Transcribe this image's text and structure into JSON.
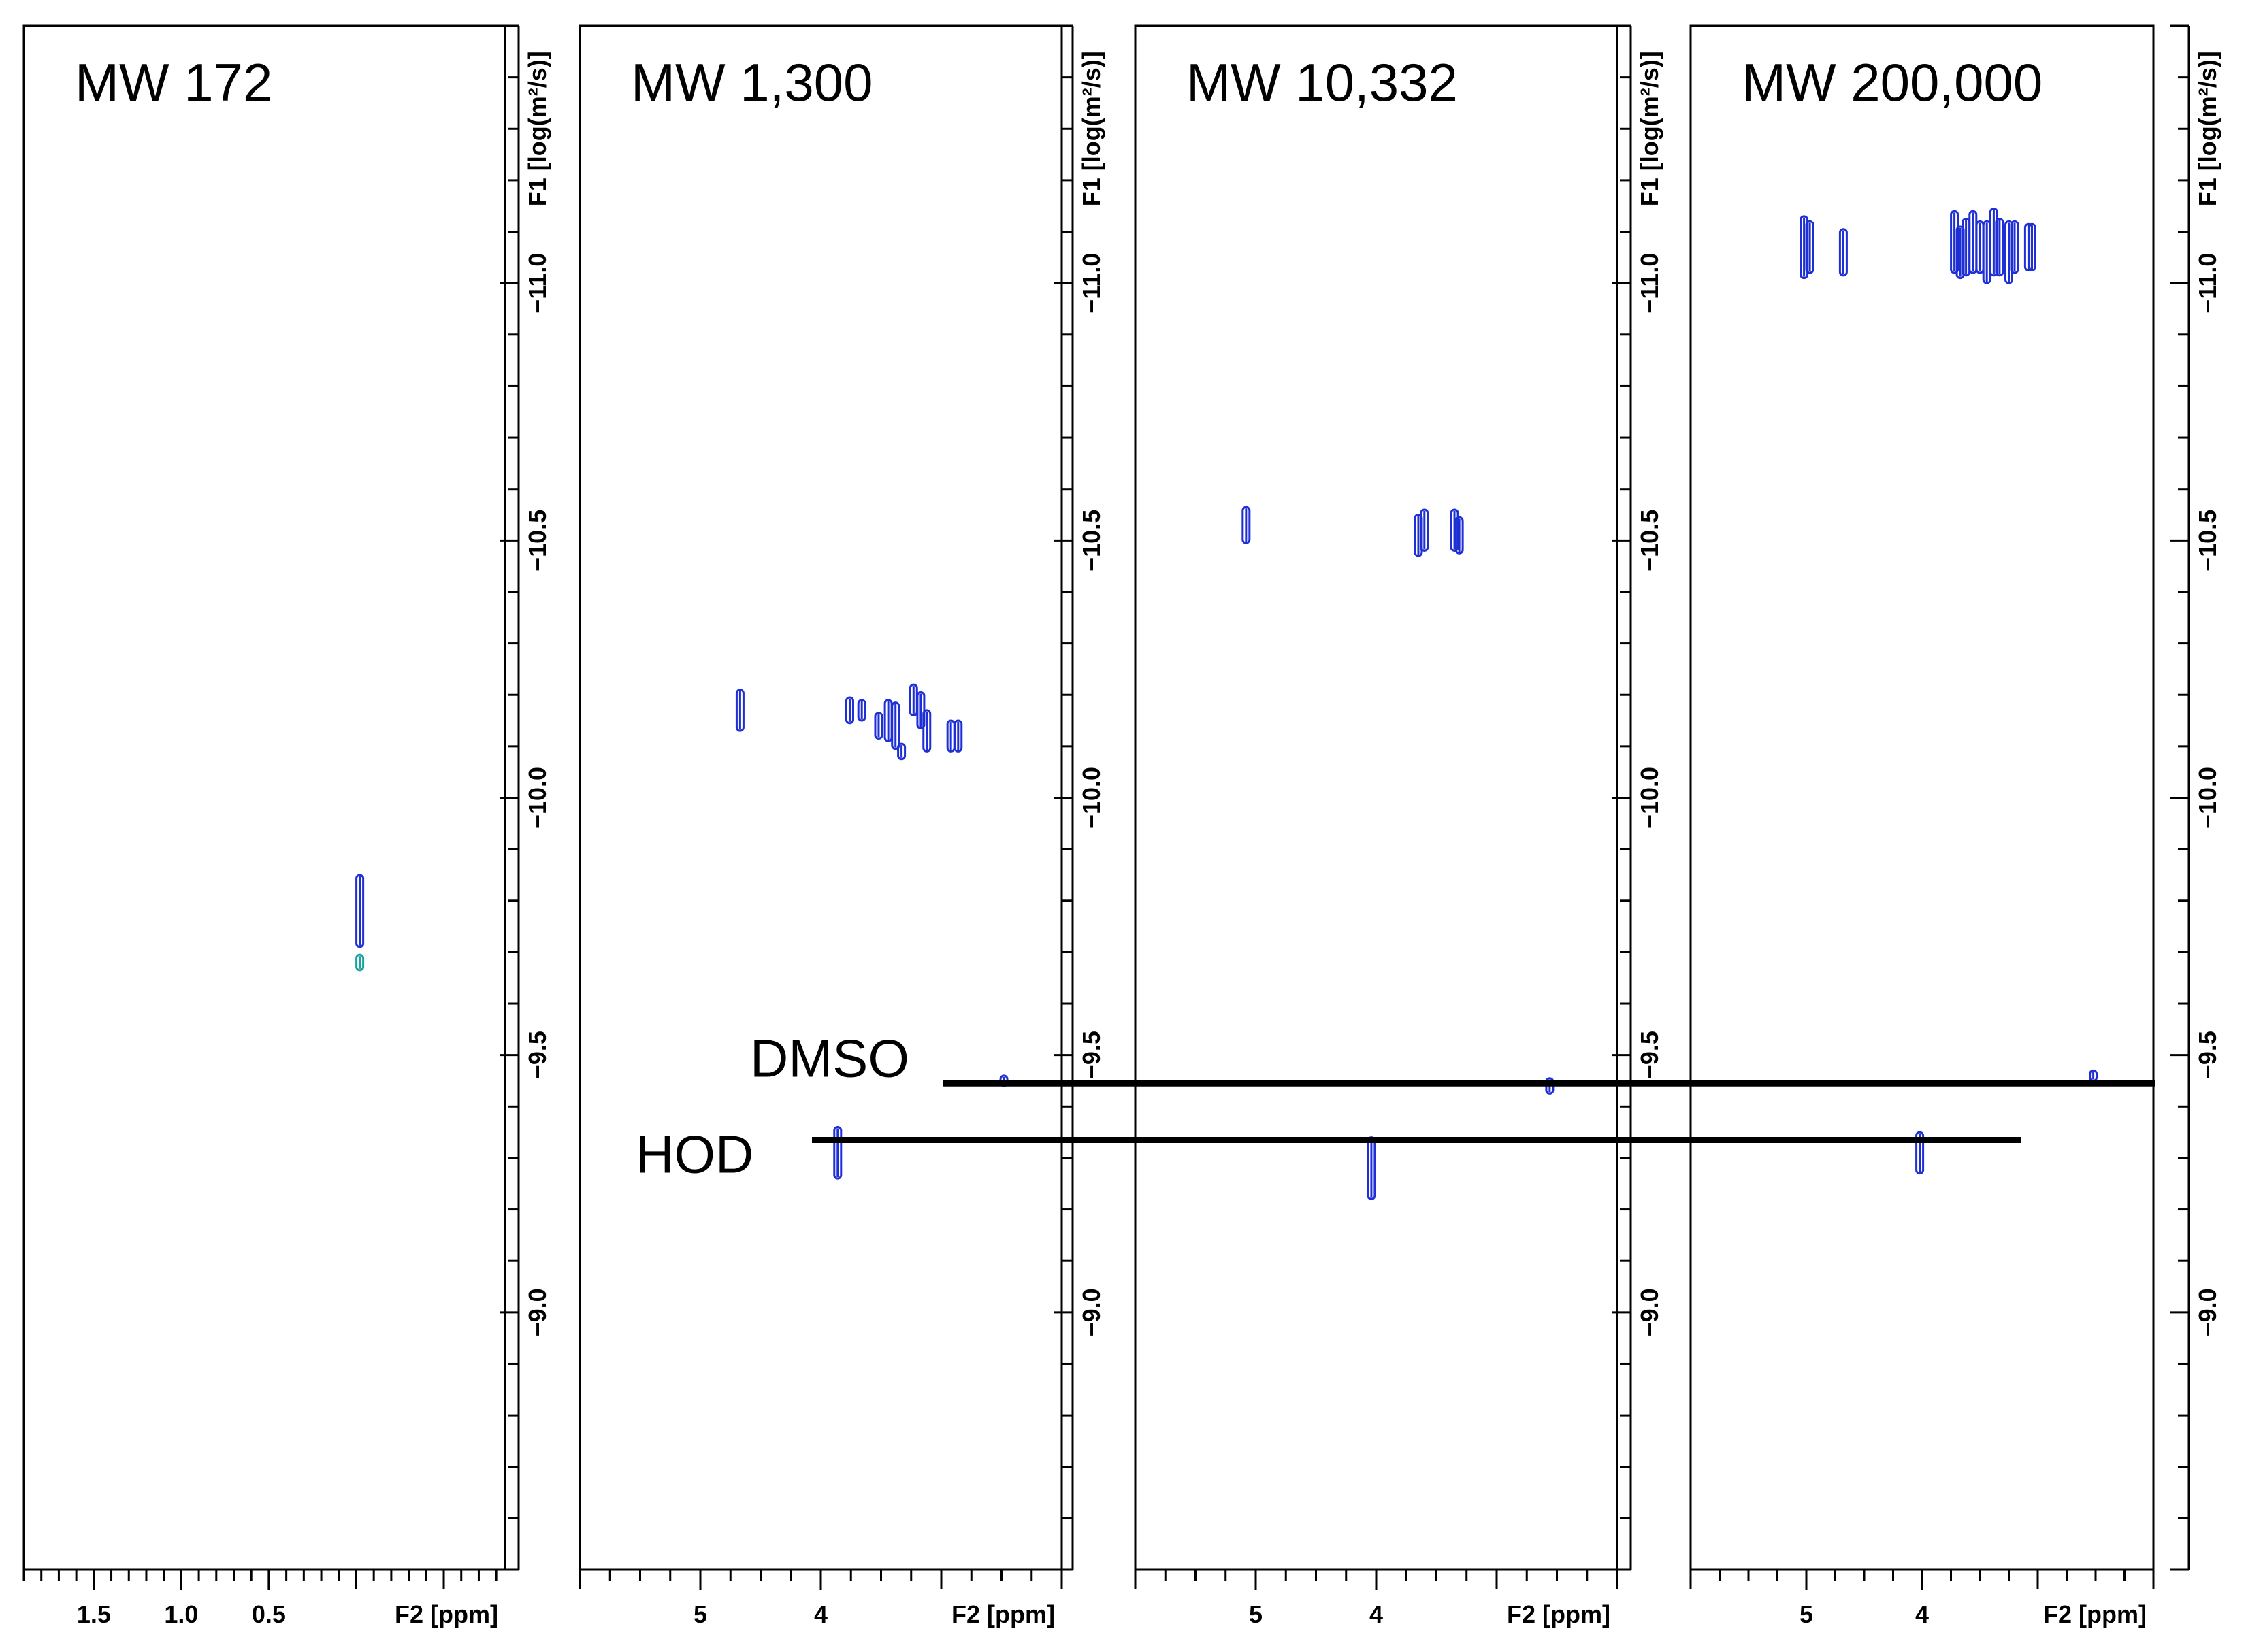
{
  "chart_data": {
    "type": "scatter",
    "subtype": "2D DOSY NMR contour plot",
    "y_axis_label": "F1 [log(m²/s)]",
    "y_ticks": [
      "-11.0",
      "-10.5",
      "-10.0",
      "-9.5",
      "-9.0"
    ],
    "y_range": [
      -11.5,
      -8.5
    ],
    "x_axis_label": "F2 [ppm]",
    "panels": [
      {
        "title": "MW 172",
        "xlim": [
          1.9,
          -0.85
        ],
        "x_ticks": [
          "1.5",
          "1.0",
          "0.5"
        ],
        "peaks": [
          {
            "ppm": -0.02,
            "logD": -9.78,
            "span": 0.14,
            "color": "#1f2fd6"
          },
          {
            "ppm": -0.02,
            "logD": -9.68,
            "span": 0.03,
            "color": "#1aa39a"
          }
        ]
      },
      {
        "title": "MW 1,300",
        "xlim": [
          6.0,
          2.0
        ],
        "x_ticks": [
          "5",
          "4"
        ],
        "peaks": [
          {
            "ppm": 4.67,
            "logD": -10.17,
            "span": 0.08,
            "color": "#1f2fd6"
          },
          {
            "ppm": 3.76,
            "logD": -10.17,
            "span": 0.05,
            "color": "#1f2fd6"
          },
          {
            "ppm": 3.66,
            "logD": -10.17,
            "span": 0.04,
            "color": "#1f2fd6"
          },
          {
            "ppm": 3.52,
            "logD": -10.14,
            "span": 0.05,
            "color": "#1f2fd6"
          },
          {
            "ppm": 3.44,
            "logD": -10.15,
            "span": 0.08,
            "color": "#1f2fd6"
          },
          {
            "ppm": 3.38,
            "logD": -10.14,
            "span": 0.09,
            "color": "#1f2fd6"
          },
          {
            "ppm": 3.23,
            "logD": -10.19,
            "span": 0.06,
            "color": "#1f2fd6"
          },
          {
            "ppm": 3.17,
            "logD": -10.17,
            "span": 0.07,
            "color": "#1f2fd6"
          },
          {
            "ppm": 3.12,
            "logD": -10.13,
            "span": 0.08,
            "color": "#1f2fd6"
          },
          {
            "ppm": 2.92,
            "logD": -10.12,
            "span": 0.06,
            "color": "#1f2fd6"
          },
          {
            "ppm": 2.86,
            "logD": -10.12,
            "span": 0.06,
            "color": "#1f2fd6"
          },
          {
            "ppm": 3.33,
            "logD": -10.09,
            "span": 0.03,
            "color": "#1f2fd6"
          },
          {
            "ppm": 3.86,
            "logD": -9.31,
            "span": 0.1,
            "color": "#1f2fd6"
          },
          {
            "ppm": 2.48,
            "logD": -9.45,
            "span": 0.02,
            "color": "#1f2fd6"
          }
        ]
      },
      {
        "title": "MW 10,332",
        "xlim": [
          6.0,
          2.0
        ],
        "x_ticks": [
          "5",
          "4"
        ],
        "peaks": [
          {
            "ppm": 5.08,
            "logD": -10.53,
            "span": 0.07,
            "color": "#1f2fd6"
          },
          {
            "ppm": 3.65,
            "logD": -10.51,
            "span": 0.08,
            "color": "#1f2fd6"
          },
          {
            "ppm": 3.6,
            "logD": -10.52,
            "span": 0.08,
            "color": "#1f2fd6"
          },
          {
            "ppm": 3.35,
            "logD": -10.52,
            "span": 0.08,
            "color": "#1f2fd6"
          },
          {
            "ppm": 3.31,
            "logD": -10.51,
            "span": 0.07,
            "color": "#1f2fd6"
          },
          {
            "ppm": 4.04,
            "logD": -9.28,
            "span": 0.12,
            "color": "#1f2fd6"
          },
          {
            "ppm": 2.56,
            "logD": -9.44,
            "span": 0.03,
            "color": "#1f2fd6"
          }
        ]
      },
      {
        "title": "MW 200,000",
        "xlim": [
          6.0,
          2.0
        ],
        "x_ticks": [
          "5",
          "4"
        ],
        "peaks": [
          {
            "ppm": 5.02,
            "logD": -11.07,
            "span": 0.12,
            "color": "#1f2fd6"
          },
          {
            "ppm": 4.97,
            "logD": -11.07,
            "span": 0.1,
            "color": "#1f2fd6"
          },
          {
            "ppm": 4.68,
            "logD": -11.06,
            "span": 0.09,
            "color": "#1f2fd6"
          },
          {
            "ppm": 3.72,
            "logD": -11.08,
            "span": 0.12,
            "color": "#1f2fd6"
          },
          {
            "ppm": 3.67,
            "logD": -11.06,
            "span": 0.1,
            "color": "#1f2fd6"
          },
          {
            "ppm": 3.62,
            "logD": -11.07,
            "span": 0.11,
            "color": "#1f2fd6"
          },
          {
            "ppm": 3.56,
            "logD": -11.08,
            "span": 0.12,
            "color": "#1f2fd6"
          },
          {
            "ppm": 3.5,
            "logD": -11.07,
            "span": 0.1,
            "color": "#1f2fd6"
          },
          {
            "ppm": 3.44,
            "logD": -11.06,
            "span": 0.12,
            "color": "#1f2fd6"
          },
          {
            "ppm": 3.38,
            "logD": -11.08,
            "span": 0.13,
            "color": "#1f2fd6"
          },
          {
            "ppm": 3.33,
            "logD": -11.07,
            "span": 0.11,
            "color": "#1f2fd6"
          },
          {
            "ppm": 3.25,
            "logD": -11.06,
            "span": 0.12,
            "color": "#1f2fd6"
          },
          {
            "ppm": 3.2,
            "logD": -11.07,
            "span": 0.1,
            "color": "#1f2fd6"
          },
          {
            "ppm": 3.08,
            "logD": -11.07,
            "span": 0.09,
            "color": "#1f2fd6"
          },
          {
            "ppm": 3.05,
            "logD": -11.07,
            "span": 0.09,
            "color": "#1f2fd6"
          },
          {
            "ppm": 4.02,
            "logD": -9.31,
            "span": 0.08,
            "color": "#1f2fd6"
          },
          {
            "ppm": 2.52,
            "logD": -9.46,
            "span": 0.02,
            "color": "#1f2fd6"
          }
        ]
      }
    ],
    "annotations": [
      {
        "text": "DMSO",
        "logD": -9.445
      },
      {
        "text": "HOD",
        "logD": -9.335
      }
    ]
  }
}
